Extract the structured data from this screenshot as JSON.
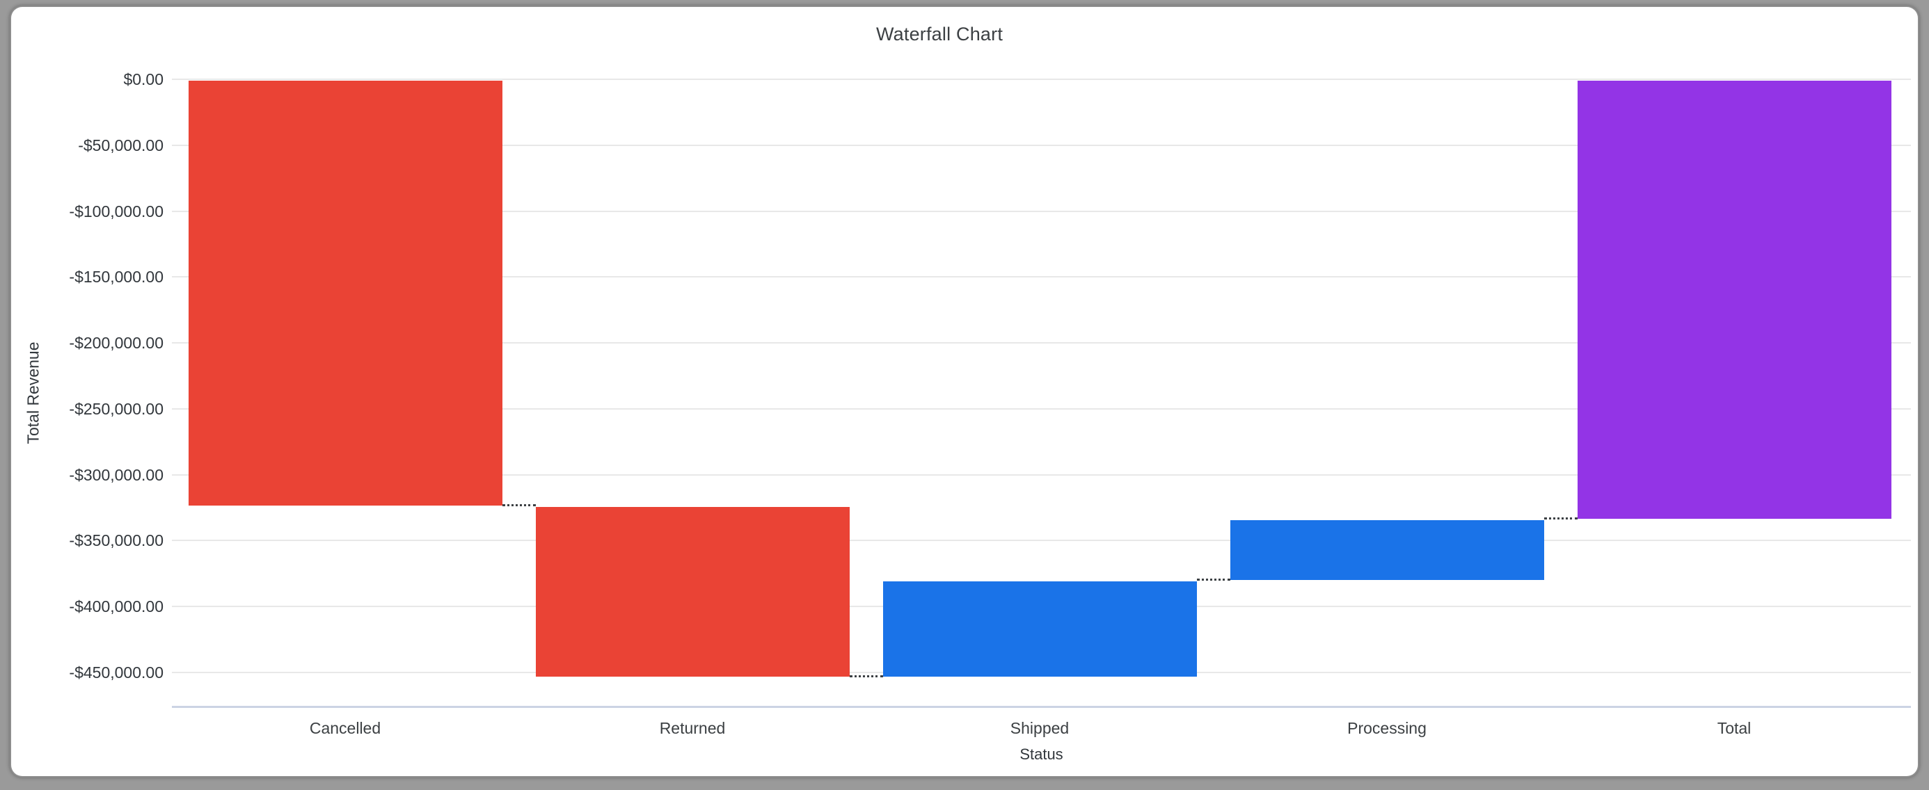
{
  "frame": {
    "backdrop_color": "#9a9a9a",
    "surface_color": "#ffffff"
  },
  "chart_data": {
    "type": "waterfall",
    "title": "Waterfall Chart",
    "legend": "none",
    "x_axis": {
      "title": "Status",
      "categories": [
        "Cancelled",
        "Returned",
        "Shipped",
        "Processing",
        "Total"
      ]
    },
    "y_axis": {
      "title": "Total Revenue",
      "range": [
        -476500,
        0
      ],
      "grid": true,
      "ticks": [
        {
          "label": "$0.00",
          "value": 0
        },
        {
          "label": "-$50,000.00",
          "value": -50000
        },
        {
          "label": "-$100,000.00",
          "value": -100000
        },
        {
          "label": "-$150,000.00",
          "value": -150000
        },
        {
          "label": "-$200,000.00",
          "value": -200000
        },
        {
          "label": "-$250,000.00",
          "value": -250000
        },
        {
          "label": "-$300,000.00",
          "value": -300000
        },
        {
          "label": "-$350,000.00",
          "value": -350000
        },
        {
          "label": "-$400,000.00",
          "value": -400000
        },
        {
          "label": "-$450,000.00",
          "value": -450000
        }
      ]
    },
    "series": [
      {
        "label": "Cancelled",
        "kind": "decrease",
        "value": -323500,
        "cumulative": -323500,
        "color": "#EA4335"
      },
      {
        "label": "Returned",
        "kind": "decrease",
        "value": -129500,
        "cumulative": -453000,
        "color": "#EA4335"
      },
      {
        "label": "Shipped",
        "kind": "increase",
        "value": 73000,
        "cumulative": -380000,
        "color": "#1A73E8"
      },
      {
        "label": "Processing",
        "kind": "increase",
        "value": 46600,
        "cumulative": -333400,
        "color": "#1A73E8"
      },
      {
        "label": "Total",
        "kind": "total",
        "value": -333400,
        "cumulative": -333400,
        "color": "#9334E6"
      }
    ],
    "colors": {
      "decrease": "#EA4335",
      "increase": "#1A73E8",
      "total": "#9334E6",
      "gridline": "#e8e8e8",
      "baseline": "#ccd3e4",
      "connector": "#3c4043"
    }
  }
}
